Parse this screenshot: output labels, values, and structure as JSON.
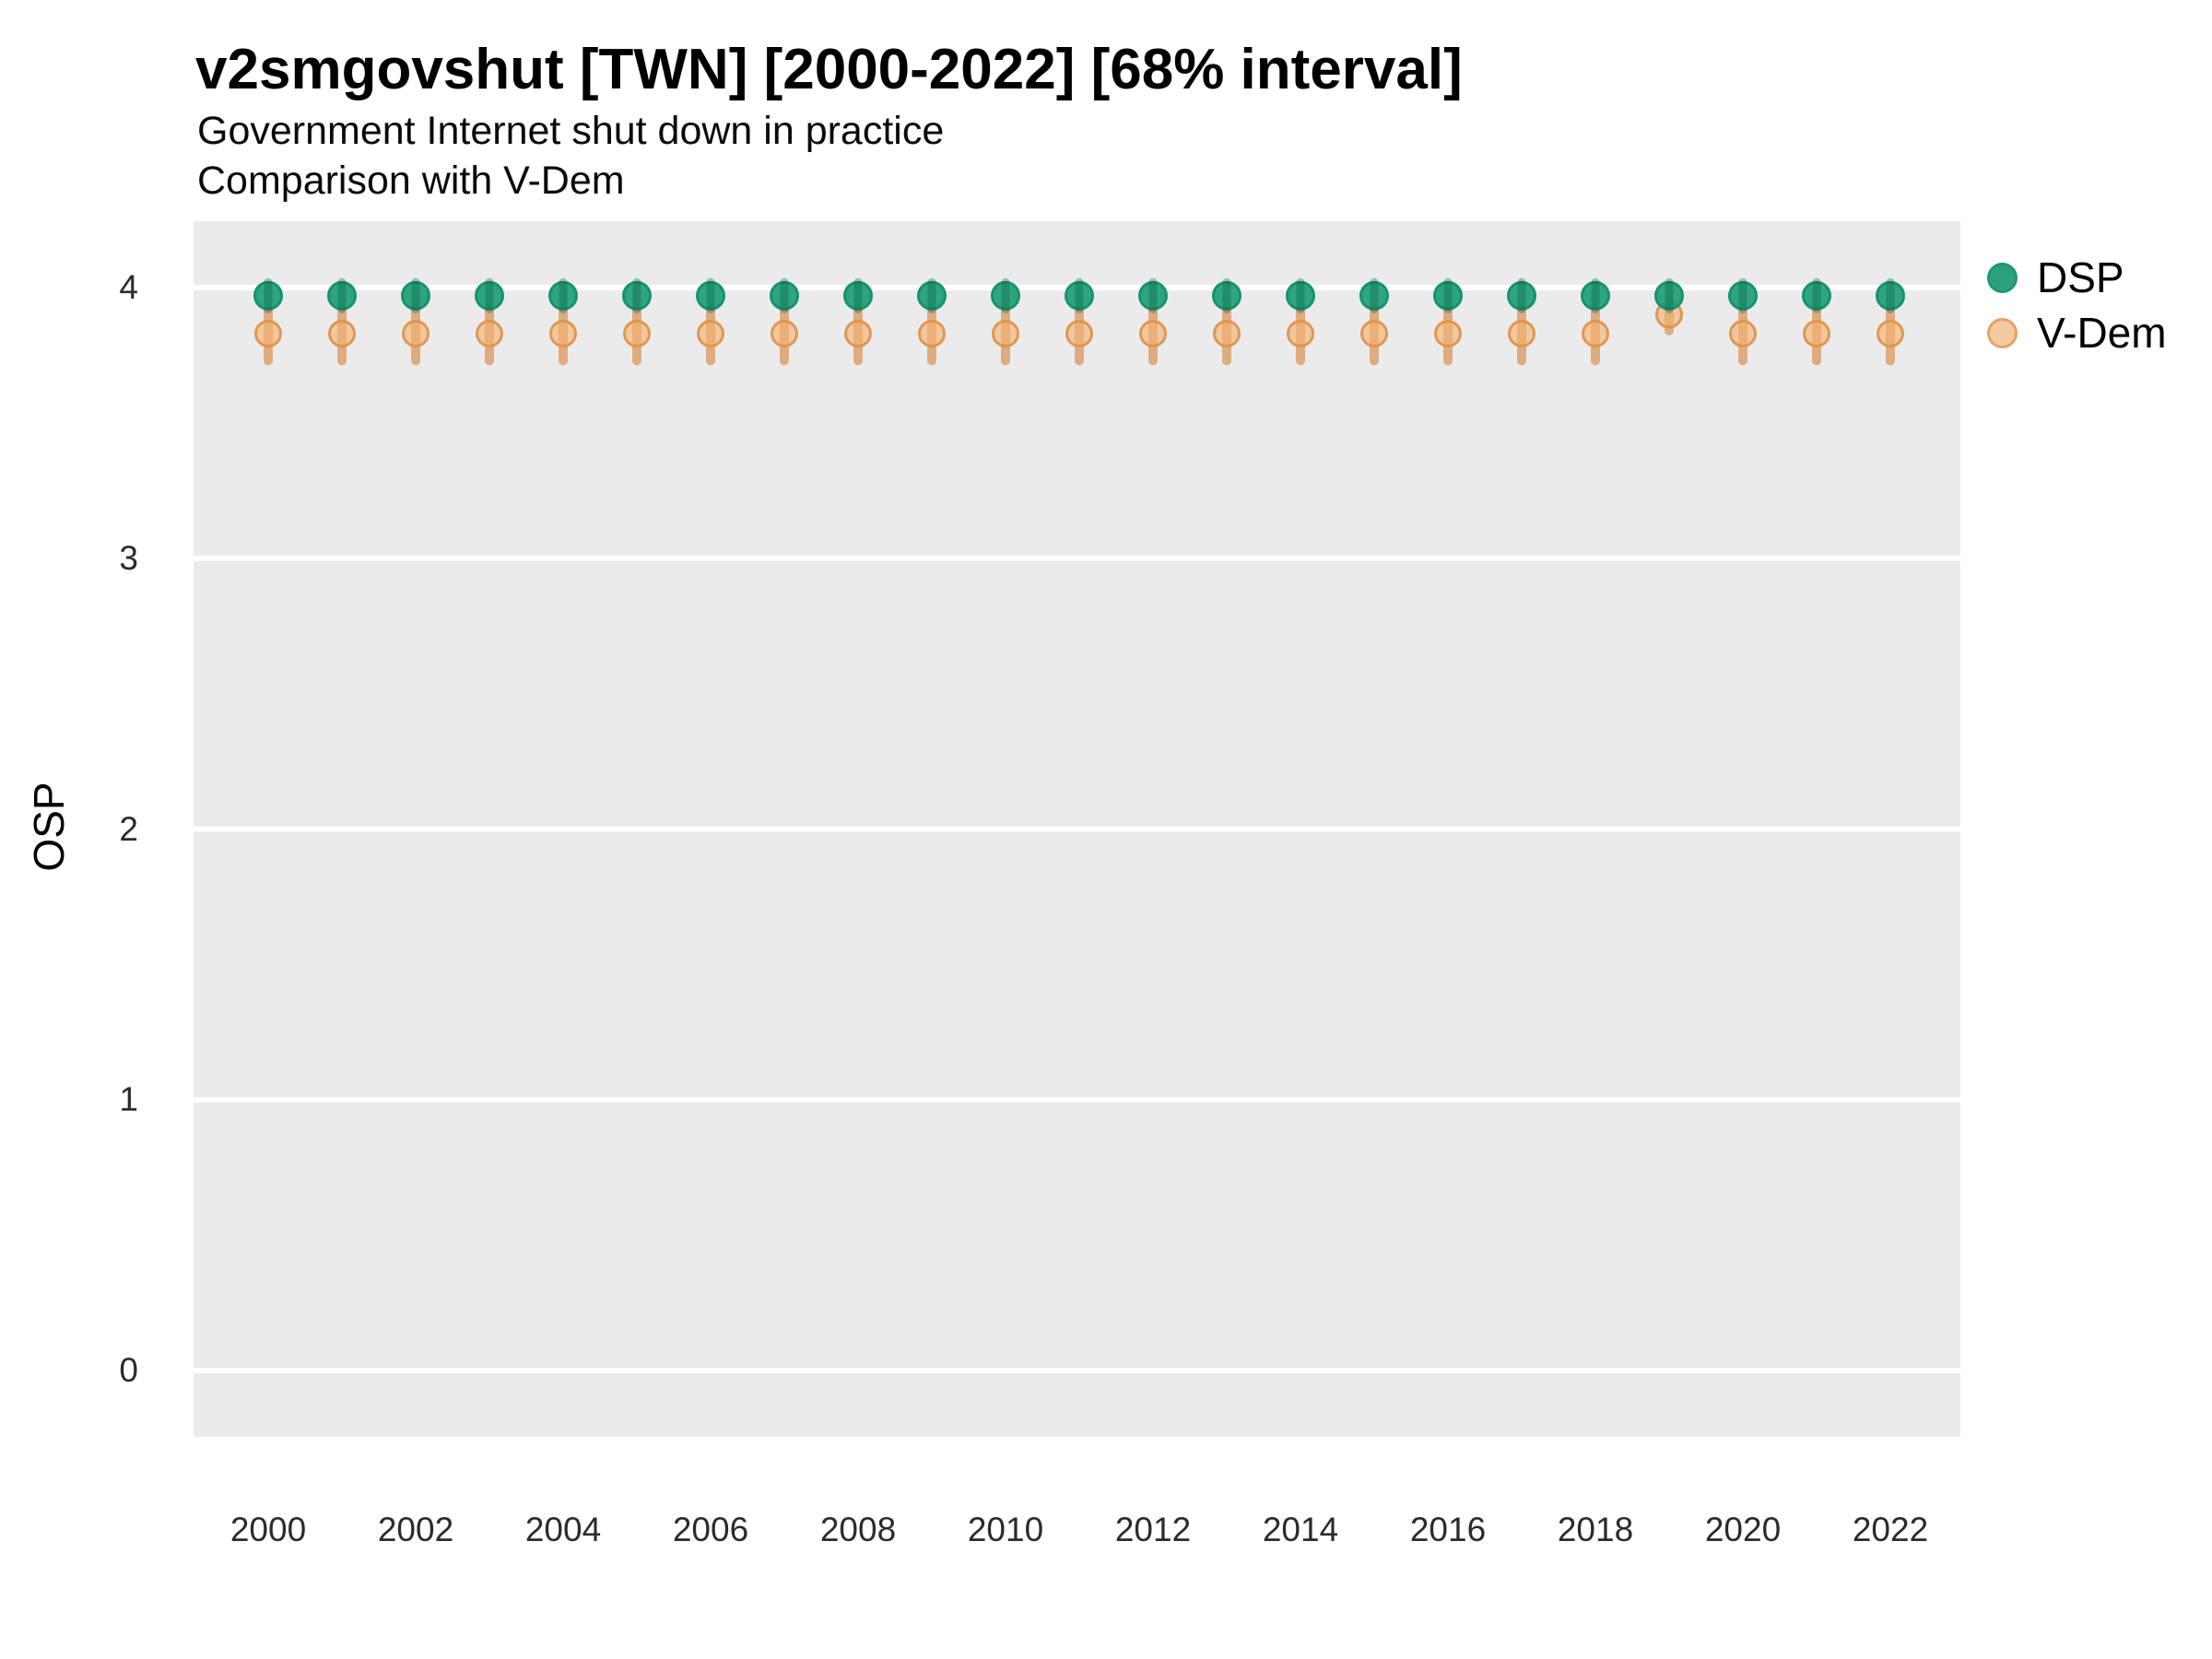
{
  "chart_data": {
    "type": "scatter",
    "title": "v2smgovshut [TWN] [2000-2022] [68% interval]",
    "subtitle": "Government Internet shut down in practice",
    "subtitle2": "Comparison with V-Dem",
    "xlabel": "",
    "ylabel": "OSP",
    "ylim": [
      -0.22,
      4.25
    ],
    "yticks": [
      4,
      3,
      2,
      1,
      0
    ],
    "xtick_years": [
      2000,
      2002,
      2004,
      2006,
      2008,
      2010,
      2012,
      2014,
      2016,
      2018,
      2020,
      2022
    ],
    "x": [
      2000,
      2001,
      2002,
      2003,
      2004,
      2005,
      2006,
      2007,
      2008,
      2009,
      2010,
      2011,
      2012,
      2013,
      2014,
      2015,
      2016,
      2017,
      2018,
      2019,
      2020,
      2021,
      2022
    ],
    "grid": "major-y-white-on-gray",
    "legend_position": "right-top",
    "panel_bg": "#ebebeb",
    "grid_color": "#ffffff",
    "series": [
      {
        "name": "DSP",
        "color": "#1b9e77",
        "point_fill": "rgba(30,157,119,0.92)",
        "point_stroke": "#17926d",
        "interval_color": "rgba(5,90,64,0.32)",
        "legend_fill": "#2aa17c",
        "legend_stroke": "#1d9873",
        "values": [
          3.97,
          3.97,
          3.97,
          3.97,
          3.97,
          3.97,
          3.97,
          3.97,
          3.97,
          3.97,
          3.97,
          3.97,
          3.97,
          3.97,
          3.97,
          3.97,
          3.97,
          3.97,
          3.97,
          3.97,
          3.97,
          3.97,
          3.97
        ],
        "lo": [
          3.92,
          3.92,
          3.92,
          3.92,
          3.92,
          3.92,
          3.92,
          3.92,
          3.92,
          3.92,
          3.92,
          3.92,
          3.92,
          3.92,
          3.92,
          3.92,
          3.92,
          3.92,
          3.92,
          3.92,
          3.92,
          3.92,
          3.92
        ],
        "hi": [
          4.02,
          4.02,
          4.02,
          4.02,
          4.02,
          4.02,
          4.02,
          4.02,
          4.02,
          4.02,
          4.02,
          4.02,
          4.02,
          4.02,
          4.02,
          4.02,
          4.02,
          4.02,
          4.02,
          4.02,
          4.02,
          4.02,
          4.02
        ]
      },
      {
        "name": "V-Dem",
        "color": "#e59a5e",
        "point_fill": "rgba(243,178,112,0.62)",
        "point_stroke": "rgba(223,148,75,0.95)",
        "interval_color": "rgba(214,120,40,0.55)",
        "legend_fill": "#f3c9a2",
        "legend_stroke": "#e6a267",
        "values": [
          3.83,
          3.83,
          3.83,
          3.83,
          3.83,
          3.83,
          3.83,
          3.83,
          3.83,
          3.83,
          3.83,
          3.83,
          3.83,
          3.83,
          3.83,
          3.83,
          3.83,
          3.83,
          3.83,
          3.9,
          3.83,
          3.83,
          3.83
        ],
        "lo": [
          3.73,
          3.73,
          3.73,
          3.73,
          3.73,
          3.73,
          3.73,
          3.73,
          3.73,
          3.73,
          3.73,
          3.73,
          3.73,
          3.73,
          3.73,
          3.73,
          3.73,
          3.73,
          3.73,
          3.84,
          3.73,
          3.73,
          3.73
        ],
        "hi": [
          3.92,
          3.92,
          3.92,
          3.92,
          3.92,
          3.92,
          3.92,
          3.92,
          3.92,
          3.92,
          3.92,
          3.92,
          3.92,
          3.92,
          3.92,
          3.92,
          3.92,
          3.92,
          3.92,
          3.96,
          3.92,
          3.92,
          3.92
        ]
      }
    ]
  }
}
